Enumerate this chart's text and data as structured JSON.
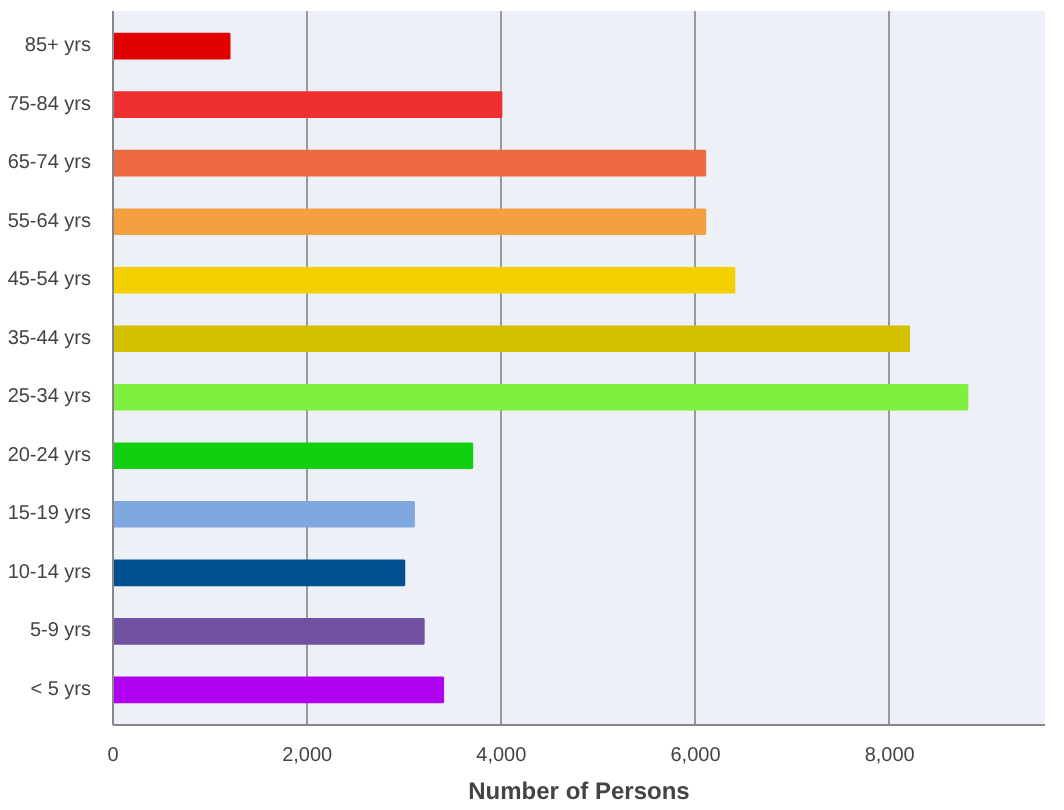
{
  "chart_data": {
    "type": "bar",
    "orientation": "horizontal",
    "xlabel": "Number of Persons",
    "categories": [
      "85+ yrs",
      "75-84 yrs",
      "65-74 yrs",
      "55-64 yrs",
      "45-54 yrs",
      "35-44 yrs",
      "25-34 yrs",
      "20-24 yrs",
      "15-19 yrs",
      "10-14 yrs",
      "5-9 yrs",
      "< 5 yrs"
    ],
    "values": [
      1200,
      4000,
      6100,
      6100,
      6400,
      8200,
      8800,
      3700,
      3100,
      3000,
      3200,
      3400
    ],
    "colors": [
      "#e00000",
      "#f03030",
      "#ee6a40",
      "#f4a040",
      "#f4d000",
      "#d4c000",
      "#80f040",
      "#10d010",
      "#80a8e0",
      "#005090",
      "#7050a0",
      "#b000f0"
    ],
    "xlim": [
      0,
      9600
    ],
    "xticks": [
      {
        "value": 0,
        "label": "0"
      },
      {
        "value": 2000,
        "label": "2,000"
      },
      {
        "value": 4000,
        "label": "4,000"
      },
      {
        "value": 6000,
        "label": "6,000"
      },
      {
        "value": 8000,
        "label": "8,000"
      }
    ],
    "grid": "x"
  }
}
